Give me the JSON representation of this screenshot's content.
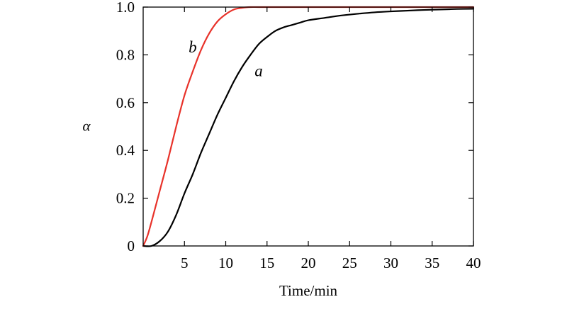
{
  "chart_data": {
    "type": "line",
    "xlabel": "Time/min",
    "ylabel": "α",
    "xlim": [
      0,
      40
    ],
    "ylim": [
      0,
      1.0
    ],
    "x_ticks": [
      5,
      10,
      15,
      20,
      25,
      30,
      35,
      40
    ],
    "y_ticks": [
      0,
      0.2,
      0.4,
      0.6,
      0.8,
      1.0
    ],
    "x_tick_labels": [
      "5",
      "10",
      "15",
      "20",
      "25",
      "30",
      "35",
      "40"
    ],
    "y_tick_labels": [
      "0",
      "0.2",
      "0.4",
      "0.6",
      "0.8",
      "1.0"
    ],
    "grid": false,
    "series": [
      {
        "name": "a",
        "color": "#000000",
        "x": [
          0,
          1,
          2,
          3,
          4,
          5,
          6,
          7,
          8,
          9,
          10,
          11,
          12,
          13,
          14,
          15,
          16,
          17,
          18,
          19,
          20,
          22,
          24,
          26,
          28,
          30,
          32,
          34,
          36,
          38,
          40
        ],
        "y": [
          0,
          0.0,
          0.02,
          0.06,
          0.13,
          0.22,
          0.3,
          0.39,
          0.47,
          0.55,
          0.62,
          0.69,
          0.75,
          0.8,
          0.845,
          0.875,
          0.9,
          0.915,
          0.925,
          0.935,
          0.945,
          0.955,
          0.965,
          0.972,
          0.978,
          0.982,
          0.985,
          0.988,
          0.99,
          0.992,
          0.993
        ]
      },
      {
        "name": "b",
        "color": "#e8322a",
        "x": [
          0,
          0.5,
          1,
          2,
          3,
          4,
          5,
          6,
          7,
          8,
          9,
          10,
          11,
          12,
          13,
          14,
          16,
          20,
          25,
          30,
          35,
          40
        ],
        "y": [
          0,
          0.04,
          0.1,
          0.23,
          0.36,
          0.5,
          0.63,
          0.73,
          0.82,
          0.89,
          0.94,
          0.97,
          0.99,
          0.997,
          1.0,
          1.0,
          1.0,
          1.0,
          1.0,
          1.0,
          1.0,
          1.0
        ]
      }
    ],
    "annotations": [
      {
        "text": "b",
        "x": 5.5,
        "y": 0.81
      },
      {
        "text": "a",
        "x": 13.5,
        "y": 0.71
      }
    ]
  }
}
